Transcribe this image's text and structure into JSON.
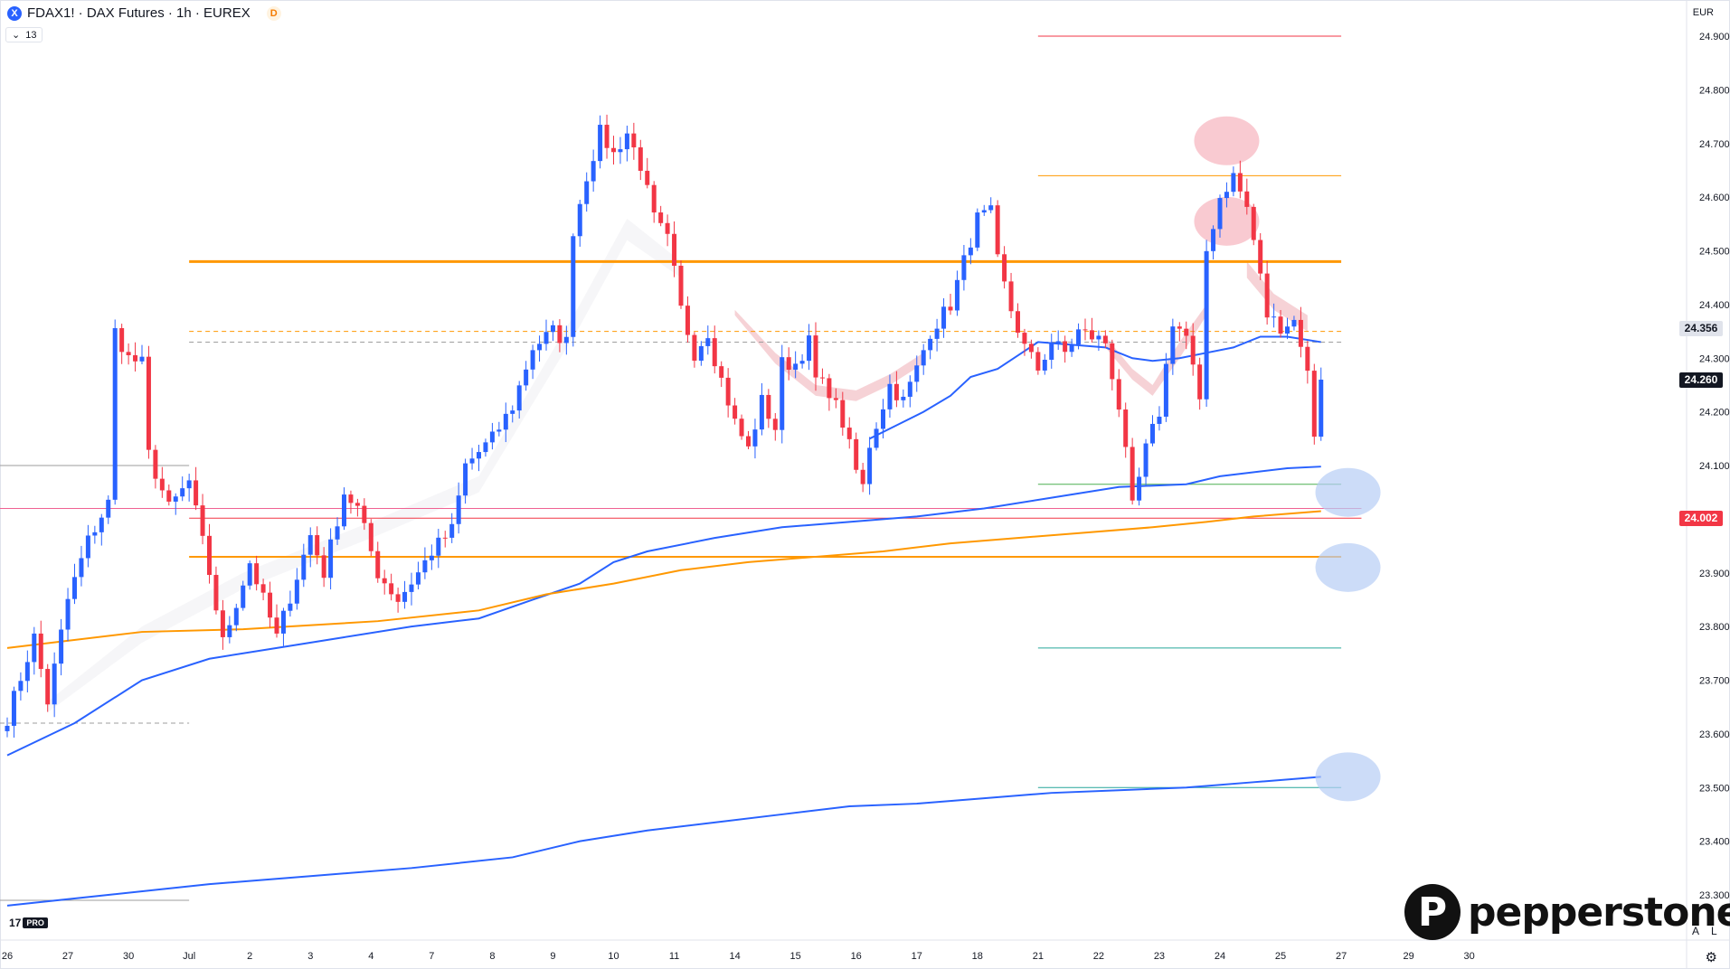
{
  "header": {
    "symbol_icon": "X",
    "title": "FDAX1! · DAX Futures · 1h · EUREX",
    "session_badge": "D",
    "indicators_count": "13",
    "indicators_toggle_icon": "chevron-down-icon"
  },
  "currency": "EUR",
  "chart_data": {
    "type": "candlestick",
    "title": "FDAX1! · DAX Futures · 1h · EUREX",
    "ylim": [
      23250,
      24950
    ],
    "y_ticks": [
      "24.900",
      "24.800",
      "24.700",
      "24.600",
      "24.500",
      "24.400",
      "24.300",
      "24.200",
      "24.100",
      "23.900",
      "23.800",
      "23.700",
      "23.600",
      "23.500",
      "23.400",
      "23.300"
    ],
    "y_tick_values": [
      24900,
      24800,
      24700,
      24600,
      24500,
      24400,
      24300,
      24200,
      24100,
      23900,
      23800,
      23700,
      23600,
      23500,
      23400,
      23300
    ],
    "x_ticks": [
      "26",
      "27",
      "30",
      "Jul",
      "2",
      "3",
      "4",
      "7",
      "8",
      "9",
      "10",
      "11",
      "14",
      "15",
      "16",
      "17",
      "18",
      "21",
      "22",
      "23",
      "24",
      "25",
      "27",
      "29",
      "30"
    ],
    "x_tick_index": [
      0,
      9,
      18,
      27,
      36,
      45,
      54,
      63,
      72,
      81,
      90,
      99,
      108,
      117,
      126,
      135,
      144,
      153,
      162,
      171,
      180,
      189,
      198,
      208,
      217
    ],
    "price_labels": [
      {
        "text": "24.356",
        "value": 24356,
        "color": "#e0e3eb",
        "text_color": "#131722"
      },
      {
        "text": "24.260",
        "value": 24260,
        "color": "#131722",
        "text_color": "#ffffff"
      },
      {
        "text": "24.002",
        "value": 24002,
        "color": "#f23645",
        "text_color": "#ffffff"
      }
    ],
    "anchors": [
      [
        0,
        23630
      ],
      [
        4,
        23780
      ],
      [
        6,
        23660
      ],
      [
        9,
        23850
      ],
      [
        12,
        23960
      ],
      [
        15,
        24030
      ],
      [
        16,
        24350
      ],
      [
        18,
        24300
      ],
      [
        20,
        24290
      ],
      [
        21,
        24120
      ],
      [
        24,
        24020
      ],
      [
        27,
        24070
      ],
      [
        30,
        23900
      ],
      [
        32,
        23770
      ],
      [
        36,
        23920
      ],
      [
        40,
        23780
      ],
      [
        45,
        23970
      ],
      [
        47,
        23900
      ],
      [
        50,
        24050
      ],
      [
        52,
        24020
      ],
      [
        55,
        23900
      ],
      [
        58,
        23850
      ],
      [
        61,
        23900
      ],
      [
        63,
        23940
      ],
      [
        66,
        23980
      ],
      [
        68,
        24100
      ],
      [
        72,
        24150
      ],
      [
        75,
        24210
      ],
      [
        78,
        24320
      ],
      [
        81,
        24350
      ],
      [
        83,
        24330
      ],
      [
        84,
        24540
      ],
      [
        86,
        24640
      ],
      [
        88,
        24720
      ],
      [
        90,
        24680
      ],
      [
        92,
        24720
      ],
      [
        94,
        24660
      ],
      [
        96,
        24560
      ],
      [
        98,
        24520
      ],
      [
        99,
        24460
      ],
      [
        100,
        24390
      ],
      [
        102,
        24310
      ],
      [
        104,
        24350
      ],
      [
        105,
        24300
      ],
      [
        108,
        24180
      ],
      [
        110,
        24130
      ],
      [
        112,
        24220
      ],
      [
        114,
        24170
      ],
      [
        115,
        24290
      ],
      [
        117,
        24290
      ],
      [
        119,
        24330
      ],
      [
        120,
        24260
      ],
      [
        122,
        24240
      ],
      [
        124,
        24180
      ],
      [
        126,
        24090
      ],
      [
        127,
        24060
      ],
      [
        128,
        24140
      ],
      [
        131,
        24250
      ],
      [
        133,
        24220
      ],
      [
        135,
        24280
      ],
      [
        137,
        24350
      ],
      [
        140,
        24400
      ],
      [
        142,
        24480
      ],
      [
        144,
        24560
      ],
      [
        146,
        24570
      ],
      [
        147,
        24480
      ],
      [
        149,
        24390
      ],
      [
        151,
        24320
      ],
      [
        153,
        24280
      ],
      [
        155,
        24330
      ],
      [
        157,
        24310
      ],
      [
        159,
        24350
      ],
      [
        161,
        24340
      ],
      [
        163,
        24330
      ],
      [
        165,
        24210
      ],
      [
        166,
        24120
      ],
      [
        167,
        24020
      ],
      [
        169,
        24130
      ],
      [
        171,
        24200
      ],
      [
        173,
        24370
      ],
      [
        175,
        24340
      ],
      [
        176,
        24280
      ],
      [
        177,
        24210
      ],
      [
        178,
        24500
      ],
      [
        180,
        24600
      ],
      [
        182,
        24640
      ],
      [
        184,
        24580
      ],
      [
        185,
        24520
      ],
      [
        186,
        24450
      ],
      [
        187,
        24380
      ],
      [
        189,
        24360
      ],
      [
        191,
        24370
      ],
      [
        192,
        24330
      ],
      [
        193,
        24270
      ],
      [
        194,
        24160
      ],
      [
        195,
        24260
      ]
    ],
    "horizontal_levels": [
      {
        "value": 24900,
        "x_from": 153,
        "x_to": 198,
        "color": "#f23645",
        "width": 1
      },
      {
        "value": 24640,
        "x_from": 153,
        "x_to": 198,
        "color": "#ff9800",
        "width": 1
      },
      {
        "value": 24480,
        "x_from": 27,
        "x_to": 198,
        "color": "#ff9800",
        "width": 3
      },
      {
        "value": 24350,
        "x_from": 27,
        "x_to": 198,
        "color": "#ff9800",
        "width": 1,
        "dashed": true
      },
      {
        "value": 24330,
        "x_from": 27,
        "x_to": 198,
        "color": "#9e9e9e",
        "width": 1,
        "dashed": true
      },
      {
        "value": 24100,
        "x_from": -1,
        "x_to": 27,
        "color": "#9e9e9e",
        "width": 1
      },
      {
        "value": 24020,
        "x_from": -1,
        "x_to": 201,
        "color": "#f06292",
        "width": 1
      },
      {
        "value": 24002,
        "x_from": 27,
        "x_to": 201,
        "color": "#f23645",
        "width": 1
      },
      {
        "value": 24065,
        "x_from": 153,
        "x_to": 198,
        "color": "#4caf50",
        "width": 1
      },
      {
        "value": 23930,
        "x_from": 27,
        "x_to": 198,
        "color": "#ff9800",
        "width": 2
      },
      {
        "value": 23760,
        "x_from": 153,
        "x_to": 198,
        "color": "#26a69a",
        "width": 1
      },
      {
        "value": 23500,
        "x_from": 153,
        "x_to": 198,
        "color": "#26a69a",
        "width": 1
      },
      {
        "value": 23620,
        "x_from": -1,
        "x_to": 27,
        "color": "#9e9e9e",
        "width": 1,
        "dashed": true
      },
      {
        "value": 23290,
        "x_from": -1,
        "x_to": 27,
        "color": "#9e9e9e",
        "width": 1
      }
    ],
    "vwap_lines": [
      {
        "name": "",
        "color": "#2962ff",
        "points": [
          [
            0,
            23560
          ],
          [
            10,
            23620
          ],
          [
            20,
            23700
          ],
          [
            30,
            23740
          ],
          [
            40,
            23760
          ],
          [
            50,
            23780
          ],
          [
            60,
            23800
          ],
          [
            70,
            23815
          ],
          [
            78,
            23850
          ],
          [
            85,
            23880
          ],
          [
            90,
            23920
          ],
          [
            95,
            23940
          ],
          [
            105,
            23965
          ],
          [
            115,
            23985
          ],
          [
            125,
            23995
          ],
          [
            135,
            24005
          ],
          [
            145,
            24020
          ],
          [
            155,
            24040
          ],
          [
            165,
            24060
          ],
          [
            175,
            24065
          ],
          [
            180,
            24080
          ],
          [
            190,
            24095
          ],
          [
            195,
            24098
          ]
        ]
      },
      {
        "name": "",
        "color": "#ff9800",
        "points": [
          [
            0,
            23760
          ],
          [
            20,
            23790
          ],
          [
            35,
            23795
          ],
          [
            55,
            23810
          ],
          [
            70,
            23830
          ],
          [
            80,
            23860
          ],
          [
            90,
            23880
          ],
          [
            100,
            23905
          ],
          [
            110,
            23920
          ],
          [
            120,
            23930
          ],
          [
            130,
            23940
          ],
          [
            140,
            23955
          ],
          [
            150,
            23965
          ],
          [
            160,
            23975
          ],
          [
            170,
            23985
          ],
          [
            178,
            23995
          ],
          [
            185,
            24005
          ],
          [
            195,
            24015
          ]
        ]
      },
      {
        "name": "",
        "color": "#2962ff",
        "points": [
          [
            0,
            23280
          ],
          [
            15,
            23300
          ],
          [
            30,
            23320
          ],
          [
            45,
            23335
          ],
          [
            60,
            23350
          ],
          [
            75,
            23370
          ],
          [
            85,
            23400
          ],
          [
            95,
            23420
          ],
          [
            105,
            23435
          ],
          [
            115,
            23450
          ],
          [
            125,
            23465
          ],
          [
            135,
            23470
          ],
          [
            145,
            23480
          ],
          [
            155,
            23490
          ],
          [
            165,
            23495
          ],
          [
            175,
            23500
          ],
          [
            185,
            23510
          ],
          [
            195,
            23520
          ]
        ]
      },
      {
        "name": "",
        "color": "#2962ff",
        "points": [
          [
            128,
            24150
          ],
          [
            132,
            24175
          ],
          [
            136,
            24200
          ],
          [
            140,
            24230
          ],
          [
            143,
            24265
          ],
          [
            147,
            24280
          ],
          [
            150,
            24305
          ],
          [
            153,
            24330
          ],
          [
            158,
            24325
          ],
          [
            163,
            24320
          ],
          [
            167,
            24300
          ],
          [
            170,
            24295
          ],
          [
            174,
            24300
          ],
          [
            178,
            24310
          ],
          [
            182,
            24320
          ],
          [
            186,
            24340
          ],
          [
            190,
            24340
          ],
          [
            195,
            24330
          ]
        ]
      }
    ],
    "cloud_zones": [
      {
        "color": "#f4c7cc",
        "points": [
          [
            108,
            24390
          ],
          [
            114,
            24310
          ],
          [
            120,
            24250
          ],
          [
            126,
            24240
          ],
          [
            131,
            24270
          ],
          [
            136,
            24310
          ]
        ],
        "lower": [
          [
            108,
            24380
          ],
          [
            114,
            24290
          ],
          [
            120,
            24230
          ],
          [
            126,
            24220
          ],
          [
            131,
            24250
          ],
          [
            136,
            24290
          ]
        ]
      },
      {
        "color": "#f4c7cc",
        "points": [
          [
            163,
            24340
          ],
          [
            167,
            24280
          ],
          [
            170,
            24250
          ],
          [
            174,
            24330
          ],
          [
            178,
            24400
          ]
        ],
        "lower": [
          [
            163,
            24320
          ],
          [
            167,
            24260
          ],
          [
            170,
            24230
          ],
          [
            174,
            24300
          ],
          [
            178,
            24380
          ]
        ]
      },
      {
        "color": "#f4c7cc",
        "points": [
          [
            184,
            24480
          ],
          [
            188,
            24420
          ],
          [
            193,
            24380
          ]
        ],
        "lower": [
          [
            184,
            24450
          ],
          [
            188,
            24390
          ],
          [
            193,
            24350
          ]
        ]
      },
      {
        "color": "#f4f4f6",
        "points": [
          [
            6,
            23660
          ],
          [
            20,
            23800
          ],
          [
            35,
            23900
          ],
          [
            55,
            24000
          ],
          [
            70,
            24080
          ],
          [
            85,
            24400
          ],
          [
            92,
            24560
          ],
          [
            100,
            24480
          ]
        ],
        "lower": [
          [
            6,
            23640
          ],
          [
            20,
            23770
          ],
          [
            35,
            23870
          ],
          [
            55,
            23970
          ],
          [
            70,
            24050
          ],
          [
            85,
            24360
          ],
          [
            92,
            24520
          ],
          [
            100,
            24450
          ]
        ]
      }
    ],
    "zone_markers": [
      {
        "x": 181,
        "value": 24705,
        "color": "#f7b4bd"
      },
      {
        "x": 181,
        "value": 24555,
        "color": "#f7b4bd"
      },
      {
        "x": 199,
        "value": 24050,
        "color": "#b7cdf5"
      },
      {
        "x": 199,
        "value": 23910,
        "color": "#b7cdf5"
      },
      {
        "x": 199,
        "value": 23520,
        "color": "#b7cdf5"
      }
    ],
    "up_color": "#2962ff",
    "down_color": "#f23645"
  },
  "footer": {
    "tv_logo": "17",
    "tv_pro": "PRO",
    "auto_btn": "A",
    "log_btn": "L",
    "settings_icon": "gear-icon"
  },
  "brand": {
    "mark": "P",
    "name": "pepperstone"
  }
}
